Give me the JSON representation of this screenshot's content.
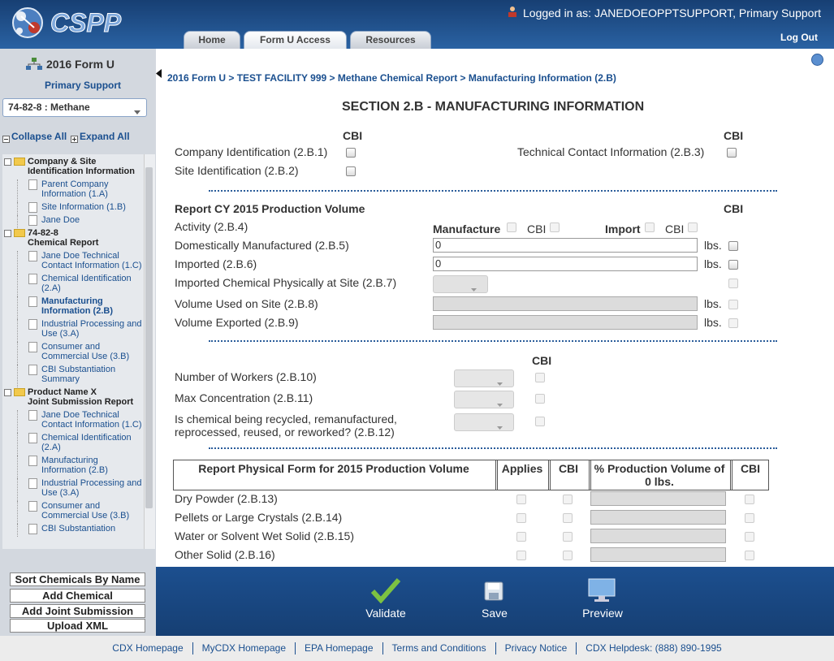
{
  "header": {
    "logo": "CSPP",
    "logged_in_label": "Logged in as:",
    "user": "JANEDOEOPPTSUPPORT, Primary Support",
    "logout": "Log Out",
    "tabs": [
      "Home",
      "Form U Access",
      "Resources"
    ]
  },
  "sidebar": {
    "form_title": "2016 Form U",
    "role": "Primary Support",
    "chemical": "74-82-8 : Methane",
    "collapse_all": "Collapse All",
    "expand_all": "Expand All",
    "tree": [
      {
        "label": "Company & Site Identification Information",
        "children": [
          "Parent Company Information (1.A)",
          "Site Information (1.B)",
          "Jane Doe"
        ]
      },
      {
        "label": "74-82-8\nChemical Report",
        "children": [
          "Jane Doe Technical Contact Information (1.C)",
          "Chemical Identification (2.A)",
          "Manufacturing Information (2.B)",
          "Industrial Processing and Use (3.A)",
          "Consumer and Commercial Use (3.B)",
          "CBI Substantiation Summary"
        ]
      },
      {
        "label": "Product Name X\nJoint Submission Report",
        "children": [
          "Jane Doe Technical Contact Information (1.C)",
          "Chemical Identification (2.A)",
          "Manufacturing Information (2.B)",
          "Industrial Processing and Use (3.A)",
          "Consumer and Commercial Use (3.B)",
          "CBI Substantiation"
        ]
      }
    ],
    "buttons": [
      "Sort Chemicals By Name",
      "Add Chemical",
      "Add Joint Submission",
      "Upload XML"
    ]
  },
  "breadcrumb": "2016 Form U > TEST FACILITY 999 > Methane Chemical Report > Manufacturing Information (2.B)",
  "section_title": "SECTION 2.B - MANUFACTURING INFORMATION",
  "identification": {
    "cbi_headers": [
      "CBI",
      "CBI"
    ],
    "items": [
      "Company Identification (2.B.1)",
      "Site Identification (2.B.2)",
      "Technical Contact Information (2.B.3)"
    ]
  },
  "production": {
    "title": "Report CY 2015 Production Volume",
    "cbi_header": "CBI",
    "activity": {
      "label": "Activity (2.B.4)",
      "manufacture": "Manufacture",
      "manufacture_cbi": "CBI",
      "import": "Import",
      "import_cbi": "CBI"
    },
    "rows": [
      {
        "label": "Domestically Manufactured (2.B.5)",
        "value": "0",
        "unit": "lbs."
      },
      {
        "label": "Imported (2.B.6)",
        "value": "0",
        "unit": "lbs."
      },
      {
        "label": "Imported Chemical Physically at Site (2.B.7)"
      },
      {
        "label": "Volume Used on Site (2.B.8)",
        "unit": "lbs."
      },
      {
        "label": "Volume Exported (2.B.9)",
        "unit": "lbs."
      }
    ]
  },
  "workers": {
    "cbi_header": "CBI",
    "rows": [
      "Number of Workers (2.B.10)",
      "Max Concentration (2.B.11)",
      "Is chemical being recycled, remanufactured, reprocessed, reused, or reworked? (2.B.12)"
    ]
  },
  "physical_form": {
    "headers": [
      "Report Physical Form for 2015 Production Volume",
      "Applies",
      "CBI",
      "% Production Volume of 0 lbs.",
      "CBI"
    ],
    "rows": [
      "Dry Powder (2.B.13)",
      "Pellets or Large Crystals (2.B.14)",
      "Water or Solvent Wet Solid (2.B.15)",
      "Other Solid (2.B.16)"
    ]
  },
  "actions": [
    "Validate",
    "Save",
    "Preview"
  ],
  "footer": {
    "links": [
      "CDX Homepage",
      "MyCDX Homepage",
      "EPA Homepage",
      "Terms and Conditions",
      "Privacy Notice",
      "CDX Helpdesk: (888) 890-1995"
    ]
  }
}
